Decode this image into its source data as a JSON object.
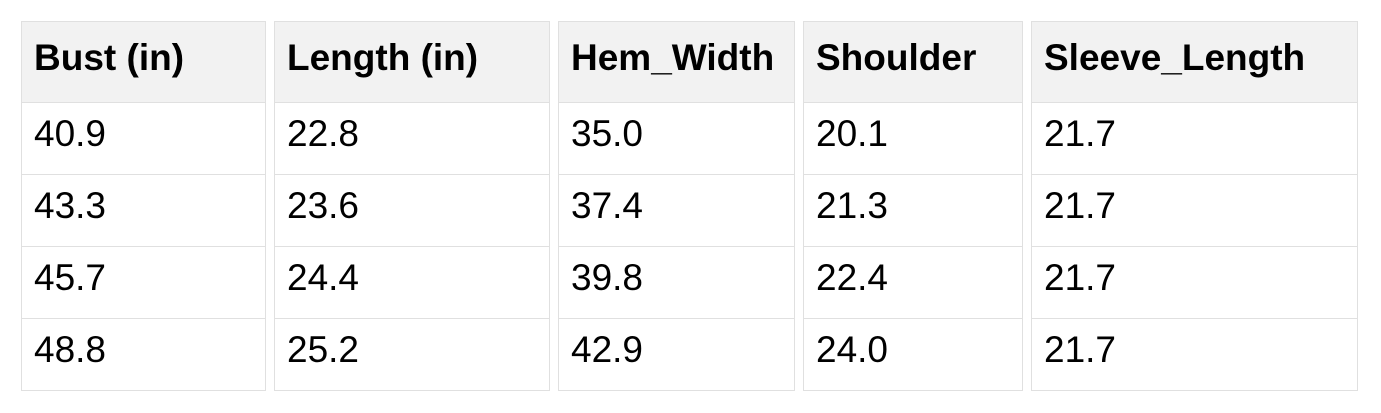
{
  "table": {
    "columns": [
      "Bust (in)",
      "Length (in)",
      "Hem_Width",
      "Shoulder",
      "Sleeve_Length"
    ],
    "rows": [
      [
        "40.9",
        "22.8",
        "35.0",
        "20.1",
        "21.7"
      ],
      [
        "43.3",
        "23.6",
        "37.4",
        "21.3",
        "21.7"
      ],
      [
        "45.7",
        "24.4",
        "39.8",
        "22.4",
        "21.7"
      ],
      [
        "48.8",
        "25.2",
        "42.9",
        "24.0",
        "21.7"
      ]
    ]
  },
  "colors": {
    "header_bg": "#f2f2f2",
    "cell_bg": "#ffffff",
    "border": "#e0e0e0",
    "text": "#000000",
    "page_bg": "#ffffff"
  },
  "chart_data": {
    "type": "table",
    "title": "",
    "columns": [
      "Bust (in)",
      "Length (in)",
      "Hem_Width",
      "Shoulder",
      "Sleeve_Length"
    ],
    "rows": [
      [
        40.9,
        22.8,
        35.0,
        20.1,
        21.7
      ],
      [
        43.3,
        23.6,
        37.4,
        21.3,
        21.7
      ],
      [
        45.7,
        24.4,
        39.8,
        22.4,
        21.7
      ],
      [
        48.8,
        25.2,
        42.9,
        24.0,
        21.7
      ]
    ],
    "layout_hints": {
      "header_style": "bold, light-gray background",
      "grid": "1px light-gray cell borders with horizontal gaps between columns",
      "alignment": "left"
    }
  }
}
